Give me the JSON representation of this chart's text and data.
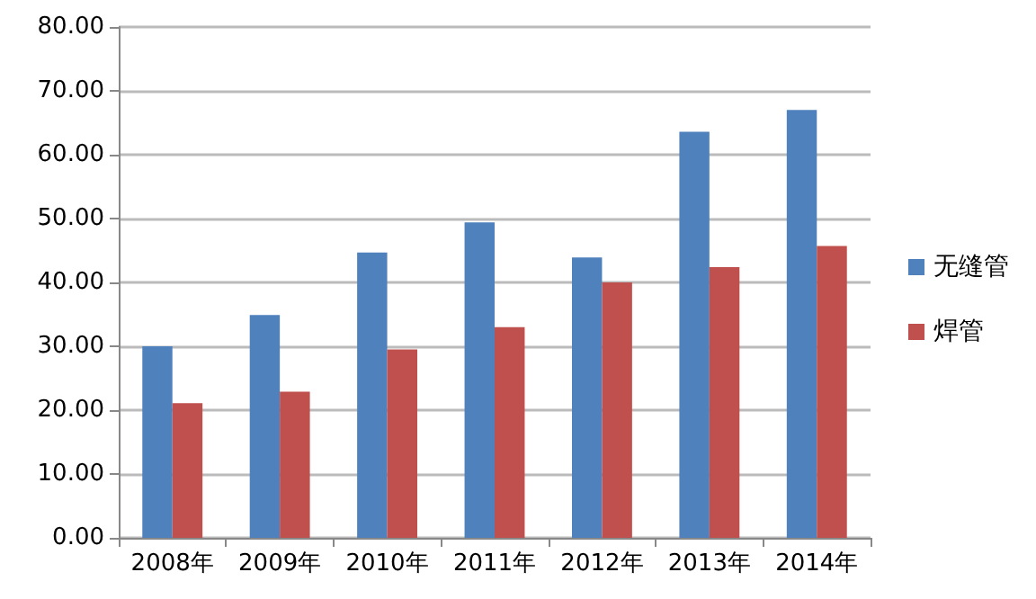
{
  "chart_data": {
    "type": "bar",
    "categories": [
      "2008年",
      "2009年",
      "2010年",
      "2011年",
      "2012年",
      "2013年",
      "2014年"
    ],
    "series": [
      {
        "name": "无缝管",
        "color": "#4f81bd",
        "values": [
          30.0,
          34.9,
          44.7,
          49.4,
          43.9,
          63.6,
          67.0
        ]
      },
      {
        "name": "焊管",
        "color": "#c0504d",
        "values": [
          21.1,
          22.9,
          29.5,
          33.0,
          40.0,
          42.4,
          45.7
        ]
      }
    ],
    "ylim": [
      0,
      80
    ],
    "yticks": [
      {
        "value": 0,
        "label": "0.00"
      },
      {
        "value": 10,
        "label": "10.00"
      },
      {
        "value": 20,
        "label": "20.00"
      },
      {
        "value": 30,
        "label": "30.00"
      },
      {
        "value": 40,
        "label": "40.00"
      },
      {
        "value": 50,
        "label": "50.00"
      },
      {
        "value": 60,
        "label": "60.00"
      },
      {
        "value": 70,
        "label": "70.00"
      },
      {
        "value": 80,
        "label": "80.00"
      }
    ],
    "grid": "y",
    "legend": "right"
  }
}
